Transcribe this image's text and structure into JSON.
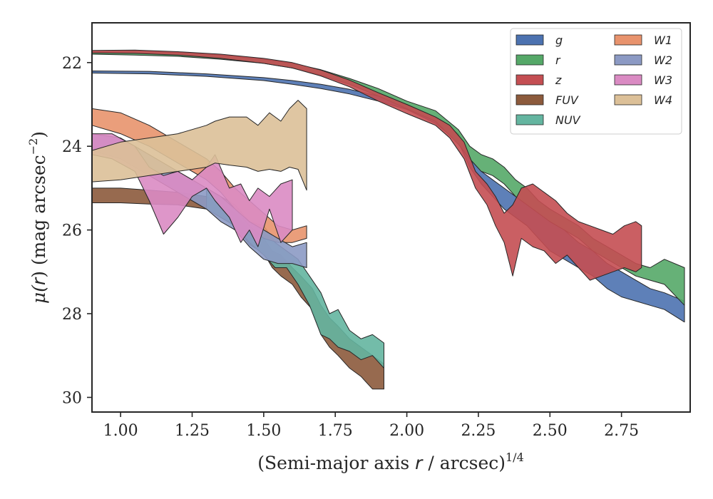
{
  "chart_data": {
    "type": "area",
    "xlabel_main": "(Semi-major axis ",
    "xlabel_var": "r",
    "xlabel_unit": " / arcsec)",
    "xlabel_exp": "1/4",
    "ylabel_main": "μ(",
    "ylabel_var": "r",
    "ylabel_unit": ") (mag arcsec",
    "ylabel_exp": "−2",
    "xlim": [
      0.9,
      2.99
    ],
    "ylim": [
      30.35,
      21.05
    ],
    "y_inverted": true,
    "grid": false,
    "legend_position": "top-right",
    "xticks": [
      1.0,
      1.25,
      1.5,
      1.75,
      2.0,
      2.25,
      2.5,
      2.75
    ],
    "xtick_labels": [
      "1.00",
      "1.25",
      "1.50",
      "1.75",
      "2.00",
      "2.25",
      "2.50",
      "2.75"
    ],
    "yticks": [
      22,
      24,
      26,
      28,
      30
    ],
    "ytick_labels": [
      "22",
      "24",
      "26",
      "28",
      "30"
    ],
    "series": [
      {
        "name": "g",
        "color": "#4c72b0",
        "x": [
          0.9,
          1.1,
          1.3,
          1.5,
          1.6,
          1.7,
          1.8,
          1.9,
          2.0,
          2.1,
          2.18,
          2.22,
          2.26,
          2.3,
          2.34,
          2.38,
          2.42,
          2.46,
          2.5,
          2.55,
          2.6,
          2.65,
          2.7,
          2.75,
          2.8,
          2.85,
          2.9,
          2.97
        ],
        "y_top": [
          22.2,
          22.21,
          22.27,
          22.36,
          22.43,
          22.52,
          22.64,
          22.8,
          23.0,
          23.3,
          23.7,
          24.3,
          24.6,
          24.8,
          25.0,
          25.2,
          25.4,
          25.6,
          25.8,
          26.0,
          26.3,
          26.5,
          26.8,
          27.0,
          27.2,
          27.4,
          27.5,
          27.7
        ],
        "y_bot": [
          22.25,
          22.27,
          22.33,
          22.43,
          22.52,
          22.62,
          22.75,
          22.92,
          23.12,
          23.45,
          23.9,
          24.5,
          24.9,
          25.2,
          25.5,
          25.7,
          25.9,
          26.2,
          26.5,
          26.7,
          26.9,
          27.1,
          27.4,
          27.6,
          27.7,
          27.8,
          27.9,
          28.2
        ]
      },
      {
        "name": "r",
        "color": "#55a868",
        "x": [
          0.9,
          1.05,
          1.2,
          1.35,
          1.5,
          1.6,
          1.7,
          1.8,
          1.9,
          2.0,
          2.1,
          2.18,
          2.22,
          2.26,
          2.3,
          2.34,
          2.38,
          2.42,
          2.46,
          2.5,
          2.55,
          2.6,
          2.65,
          2.7,
          2.75,
          2.8,
          2.85,
          2.9,
          2.97
        ],
        "y_top": [
          21.74,
          21.73,
          21.76,
          21.82,
          21.92,
          22.02,
          22.17,
          22.38,
          22.62,
          22.92,
          23.15,
          23.6,
          24.0,
          24.2,
          24.3,
          24.5,
          24.8,
          25.0,
          25.3,
          25.5,
          25.7,
          25.9,
          26.2,
          26.4,
          26.6,
          26.8,
          26.9,
          26.7,
          26.9
        ],
        "y_bot": [
          21.8,
          21.82,
          21.85,
          21.92,
          22.02,
          22.13,
          22.3,
          22.52,
          22.8,
          23.1,
          23.4,
          23.95,
          24.3,
          24.6,
          24.7,
          24.9,
          25.2,
          25.4,
          25.6,
          25.8,
          26.0,
          26.2,
          26.5,
          26.7,
          26.9,
          27.1,
          27.2,
          27.3,
          27.8
        ]
      },
      {
        "name": "z",
        "color": "#c44e52",
        "x": [
          0.9,
          1.05,
          1.2,
          1.35,
          1.5,
          1.6,
          1.7,
          1.8,
          1.9,
          2.0,
          2.1,
          2.15,
          2.2,
          2.24,
          2.28,
          2.31,
          2.34,
          2.37,
          2.4,
          2.44,
          2.48,
          2.52,
          2.56,
          2.6,
          2.64,
          2.68,
          2.72,
          2.76,
          2.8,
          2.82
        ],
        "y_top": [
          21.71,
          21.7,
          21.74,
          21.8,
          21.9,
          22.0,
          22.18,
          22.42,
          22.72,
          23.0,
          23.3,
          23.5,
          23.9,
          24.6,
          24.9,
          25.2,
          25.6,
          25.4,
          25.0,
          24.9,
          25.1,
          25.3,
          25.6,
          25.8,
          25.9,
          26.0,
          26.1,
          25.9,
          25.8,
          25.9
        ],
        "y_bot": [
          21.77,
          21.78,
          21.82,
          21.9,
          22.02,
          22.13,
          22.32,
          22.58,
          22.92,
          23.22,
          23.5,
          23.8,
          24.3,
          25.0,
          25.4,
          25.9,
          26.3,
          27.1,
          26.2,
          26.4,
          26.5,
          26.8,
          26.6,
          26.9,
          27.2,
          27.1,
          27.0,
          26.9,
          27.0,
          26.9
        ]
      },
      {
        "name": "FUV",
        "color": "#8c5a3c",
        "x": [
          0.9,
          1.0,
          1.1,
          1.2,
          1.3,
          1.4,
          1.45,
          1.5,
          1.53,
          1.56,
          1.6,
          1.63,
          1.67,
          1.7,
          1.73,
          1.76,
          1.8,
          1.84,
          1.88,
          1.92
        ],
        "y_top": [
          25.0,
          25.0,
          25.05,
          25.1,
          25.2,
          25.6,
          26.0,
          26.2,
          26.5,
          26.6,
          26.9,
          27.1,
          27.4,
          27.8,
          28.1,
          28.3,
          28.6,
          28.8,
          29.0,
          29.2
        ],
        "y_bot": [
          25.35,
          25.35,
          25.38,
          25.4,
          25.5,
          25.9,
          26.35,
          26.55,
          26.9,
          27.1,
          27.3,
          27.6,
          27.9,
          28.5,
          28.8,
          29.0,
          29.3,
          29.5,
          29.8,
          29.8
        ]
      },
      {
        "name": "NUV",
        "color": "#64b5a0",
        "x": [
          1.3,
          1.4,
          1.45,
          1.5,
          1.54,
          1.58,
          1.62,
          1.66,
          1.7,
          1.73,
          1.76,
          1.8,
          1.84,
          1.88,
          1.92
        ],
        "y_top": [
          25.0,
          25.4,
          25.8,
          25.9,
          26.3,
          26.5,
          26.7,
          27.1,
          27.5,
          28.0,
          27.9,
          28.4,
          28.6,
          28.5,
          28.7
        ],
        "y_bot": [
          25.5,
          25.9,
          26.3,
          26.6,
          26.9,
          26.9,
          27.3,
          27.8,
          28.5,
          28.6,
          28.8,
          28.9,
          29.1,
          29.0,
          29.3
        ]
      },
      {
        "name": "W1",
        "color": "#e8936d",
        "x": [
          0.9,
          1.0,
          1.1,
          1.2,
          1.3,
          1.35,
          1.4,
          1.45,
          1.5,
          1.55,
          1.6,
          1.65
        ],
        "y_top": [
          23.1,
          23.2,
          23.5,
          23.9,
          24.3,
          24.6,
          25.0,
          25.3,
          25.6,
          25.9,
          26.0,
          25.9
        ],
        "y_bot": [
          23.5,
          23.7,
          24.0,
          24.4,
          24.8,
          25.1,
          25.5,
          25.9,
          26.2,
          26.3,
          26.3,
          26.2
        ]
      },
      {
        "name": "W2",
        "color": "#8c9ac4",
        "x": [
          0.9,
          1.0,
          1.1,
          1.2,
          1.3,
          1.35,
          1.4,
          1.45,
          1.5,
          1.55,
          1.6,
          1.65
        ],
        "y_top": [
          23.7,
          23.8,
          24.2,
          24.6,
          25.0,
          25.2,
          25.5,
          25.8,
          26.0,
          26.2,
          26.4,
          26.3
        ],
        "y_bot": [
          24.1,
          24.3,
          24.7,
          25.1,
          25.5,
          25.8,
          26.0,
          26.4,
          26.7,
          26.8,
          26.8,
          26.9
        ]
      },
      {
        "name": "W3",
        "color": "#da8bc3",
        "x": [
          0.9,
          0.97,
          1.05,
          1.1,
          1.15,
          1.2,
          1.25,
          1.3,
          1.33,
          1.38,
          1.42,
          1.45,
          1.48,
          1.52,
          1.56,
          1.6
        ],
        "y_top": [
          23.7,
          23.7,
          24.0,
          24.5,
          24.7,
          24.6,
          24.8,
          24.5,
          24.2,
          25.0,
          24.9,
          25.3,
          25.0,
          25.2,
          24.9,
          24.8
        ],
        "y_bot": [
          24.2,
          24.3,
          24.6,
          25.3,
          26.1,
          25.7,
          25.2,
          25.0,
          25.3,
          25.7,
          26.3,
          26.0,
          26.4,
          25.5,
          26.3,
          26.0
        ]
      },
      {
        "name": "W4",
        "color": "#dcc098",
        "x": [
          0.9,
          1.0,
          1.1,
          1.2,
          1.3,
          1.33,
          1.38,
          1.44,
          1.48,
          1.52,
          1.56,
          1.59,
          1.62,
          1.65
        ],
        "y_top": [
          24.1,
          23.9,
          23.8,
          23.7,
          23.5,
          23.4,
          23.3,
          23.3,
          23.5,
          23.2,
          23.4,
          23.1,
          22.9,
          23.1
        ],
        "y_bot": [
          24.85,
          24.8,
          24.7,
          24.6,
          24.5,
          24.4,
          24.45,
          24.5,
          24.6,
          24.55,
          24.6,
          24.5,
          24.55,
          25.05
        ]
      }
    ]
  }
}
